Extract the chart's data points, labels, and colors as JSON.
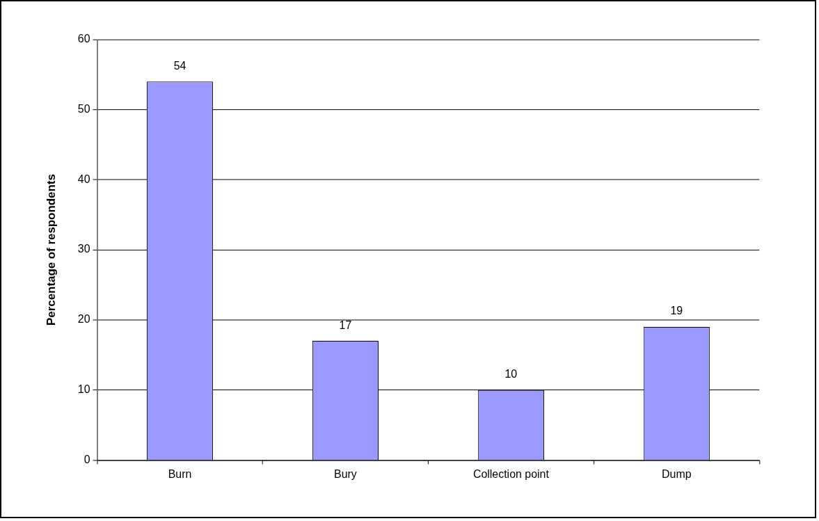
{
  "chart_data": {
    "type": "bar",
    "ylabel": "Percentage of respondents",
    "categories": [
      "Burn",
      "Bury",
      "Collection point",
      "Dump"
    ],
    "values": [
      54,
      17,
      10,
      19
    ],
    "color": "#9999ff",
    "ylim": [
      0,
      60
    ],
    "yticks": [
      0,
      10,
      20,
      30,
      40,
      50,
      60
    ],
    "grid": "y",
    "data_labels": true
  }
}
